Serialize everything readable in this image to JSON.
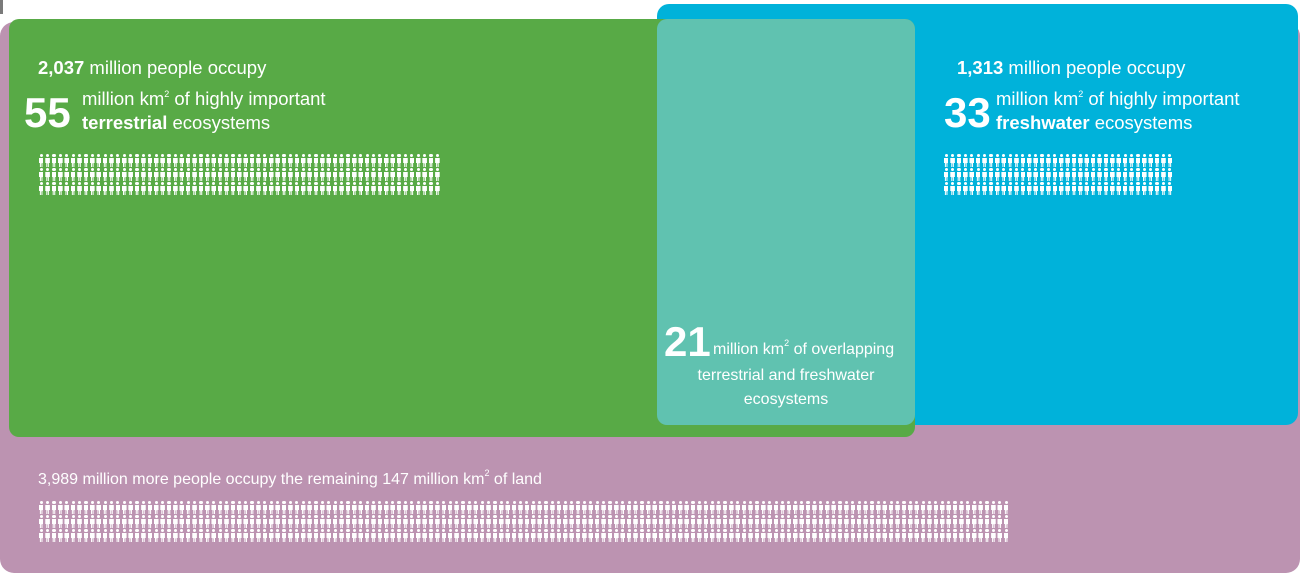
{
  "terrestrial": {
    "people_count": "2,037",
    "people_text": " million people occupy",
    "area": "55",
    "area_text": "million km",
    "area_text_2": " of highly important",
    "kind": "terrestrial",
    "kind_suffix": " ecosystems",
    "icons_per_row": 63,
    "icon_rows": 3
  },
  "freshwater": {
    "people_count": "1,313",
    "people_text": " million people occupy",
    "area": "33",
    "area_text": "million km",
    "area_text_2": " of highly important",
    "kind": "freshwater",
    "kind_suffix": " ecosystems",
    "icons_per_row": 36,
    "icon_rows": 3
  },
  "overlap": {
    "area": "21",
    "line1": "million km",
    "line1b": " of overlapping",
    "line2": "terrestrial and freshwater",
    "line3": "ecosystems"
  },
  "remaining": {
    "text_a": "3,989 million more people occupy the remaining 147 million km",
    "text_b": " of land",
    "icons_per_row": 152,
    "icon_rows": 3
  },
  "superscript": "2",
  "colors": {
    "land": "#bc93b1",
    "terrestrial": "#58aa46",
    "freshwater": "#00b2da",
    "overlap": "#60c2b0"
  }
}
